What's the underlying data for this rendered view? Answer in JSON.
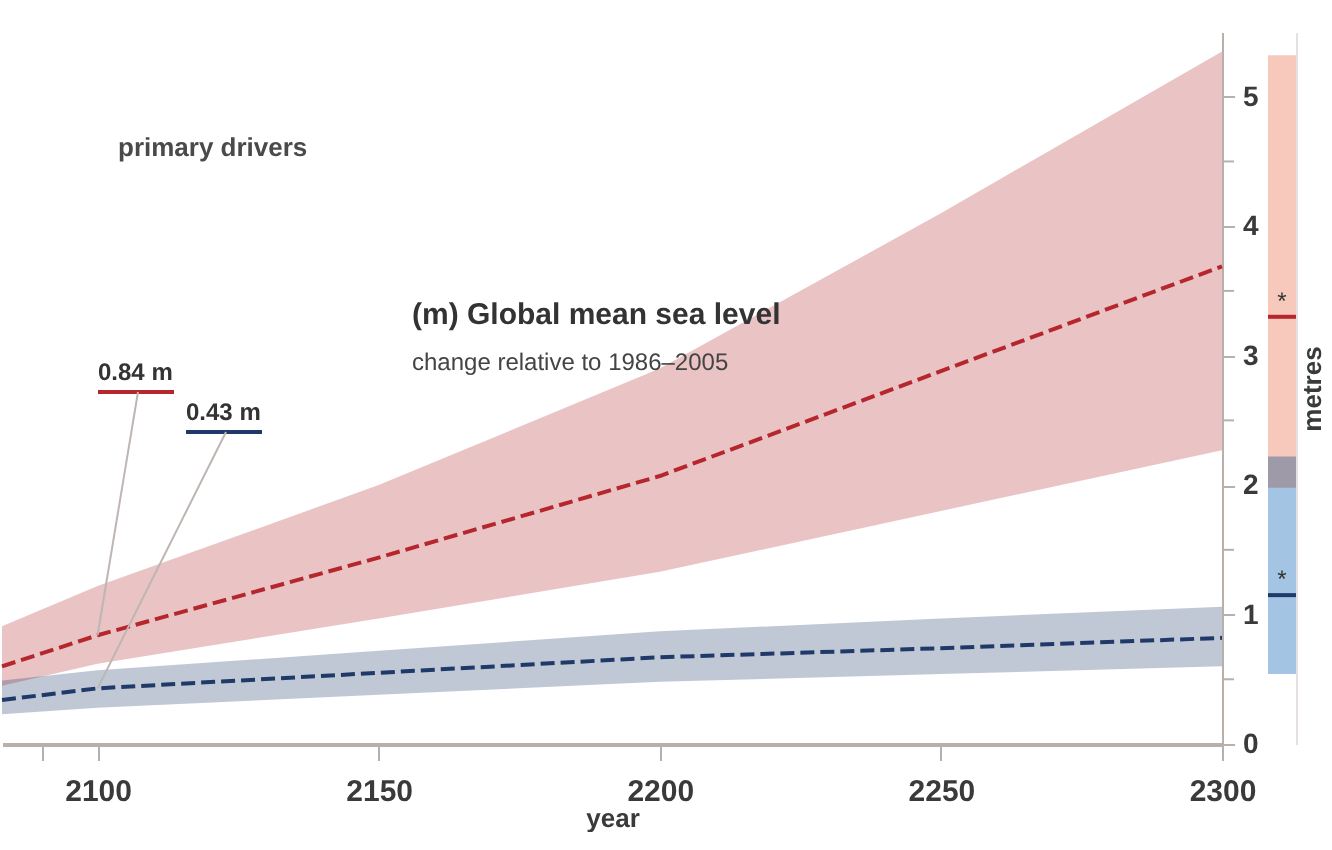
{
  "chart_data": [
    {
      "type": "line",
      "title": "(m)  Global mean sea level",
      "subtitle": "change relative to 1986–2005",
      "xlabel": "year",
      "x": [
        2083,
        2100,
        2150,
        2200,
        2250,
        2300
      ],
      "series": [
        {
          "color": "#b5272d",
          "values": [
            0.6,
            0.84,
            1.44,
            2.07,
            2.88,
            3.69
          ],
          "lower": [
            0.45,
            0.62,
            0.97,
            1.33,
            1.8,
            2.27
          ],
          "upper": [
            0.91,
            1.22,
            2.0,
            2.9,
            4.1,
            5.35
          ]
        },
        {
          "color": "#1f3a68",
          "values": [
            0.34,
            0.43,
            0.55,
            0.67,
            0.74,
            0.82
          ],
          "lower": [
            0.23,
            0.28,
            0.38,
            0.48,
            0.54,
            0.6
          ],
          "upper": [
            0.49,
            0.57,
            0.72,
            0.87,
            0.97,
            1.06
          ]
        }
      ],
      "xlim": [
        2083,
        2300
      ],
      "xticks": [
        {
          "value": 2090,
          "label": null
        },
        2100,
        2150,
        2200,
        2250,
        2300
      ],
      "ylim": [
        0,
        5.5
      ],
      "yticks": [
        0,
        {
          "value": 0.5,
          "label": null
        },
        1,
        {
          "value": 1.5,
          "label": null
        },
        2,
        {
          "value": 2.5,
          "label": null
        },
        3,
        {
          "value": 3.5,
          "label": null
        },
        4,
        {
          "value": 4.5,
          "label": null
        },
        5
      ],
      "annotations": [
        "primary drivers",
        {
          "text": "0.84 m",
          "x": 2100,
          "y": 0.84
        },
        {
          "text": "0.43 m",
          "x": 2100,
          "y": 0.43
        }
      ],
      "line_style": "dashed"
    },
    {
      "type": "bar",
      "ylabel": "metres",
      "categories": [
        null
      ],
      "ylim": [
        0,
        5.5
      ],
      "tick_labels": false,
      "series": [
        {
          "color": "#f7c9bd",
          "values": [
            3.34
          ],
          "base": [
            1.98
          ]
        },
        {
          "color": "#a3c4e3",
          "values": [
            1.68
          ],
          "base": [
            0.54
          ]
        }
      ],
      "ref_lines": [
        {
          "axis": "y",
          "value": 3.3,
          "label": "*",
          "color": "#b5272d"
        },
        {
          "axis": "y",
          "value": 1.15,
          "label": "*",
          "color": "#1f3a68"
        }
      ]
    }
  ]
}
